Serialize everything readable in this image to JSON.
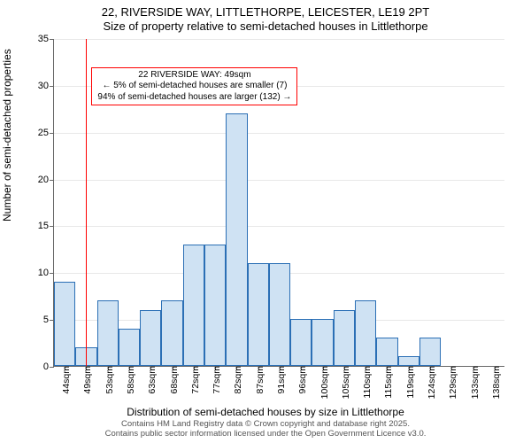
{
  "title_line1": "22, RIVERSIDE WAY, LITTLETHORPE, LEICESTER, LE19 2PT",
  "title_line2": "Size of property relative to semi-detached houses in Littlethorpe",
  "ylabel": "Number of semi-detached properties",
  "xlabel": "Distribution of semi-detached houses by size in Littlethorpe",
  "footer_line1": "Contains HM Land Registry data © Crown copyright and database right 2025.",
  "footer_line2": "Contains public sector information licensed under the Open Government Licence v3.0.",
  "chart": {
    "type": "histogram",
    "background_color": "#ffffff",
    "grid_color": "#e8e8e8",
    "axis_color": "#666666",
    "text_color": "#000000",
    "title_fontsize": 13,
    "label_fontsize": 12,
    "tick_fontsize": 11,
    "ylim": [
      0,
      35
    ],
    "ytick_step": 5,
    "yticks": [
      0,
      5,
      10,
      15,
      20,
      25,
      30,
      35
    ],
    "categories": [
      "44sqm",
      "49sqm",
      "53sqm",
      "58sqm",
      "63sqm",
      "68sqm",
      "72sqm",
      "77sqm",
      "82sqm",
      "87sqm",
      "91sqm",
      "96sqm",
      "100sqm",
      "105sqm",
      "110sqm",
      "115sqm",
      "119sqm",
      "124sqm",
      "129sqm",
      "133sqm",
      "138sqm"
    ],
    "values": [
      9,
      2,
      7,
      4,
      6,
      7,
      13,
      13,
      27,
      11,
      11,
      5,
      5,
      6,
      7,
      3,
      1,
      3,
      0,
      0,
      0
    ],
    "bar_fill": "#cfe2f3",
    "bar_stroke": "#2b6fb5",
    "bar_stroke_width": 1,
    "bar_width_ratio": 1.0,
    "reference_line": {
      "x_category_index": 1,
      "color": "#ff0000",
      "width": 1
    },
    "callout": {
      "line1": "22 RIVERSIDE WAY: 49sqm",
      "line2": "← 5% of semi-detached houses are smaller (7)",
      "line3": "94% of semi-detached houses are larger (132) →",
      "border_color": "#ff0000",
      "border_width": 1,
      "background": "#ffffff",
      "fontsize": 10,
      "anchor_y_value": 32
    }
  }
}
